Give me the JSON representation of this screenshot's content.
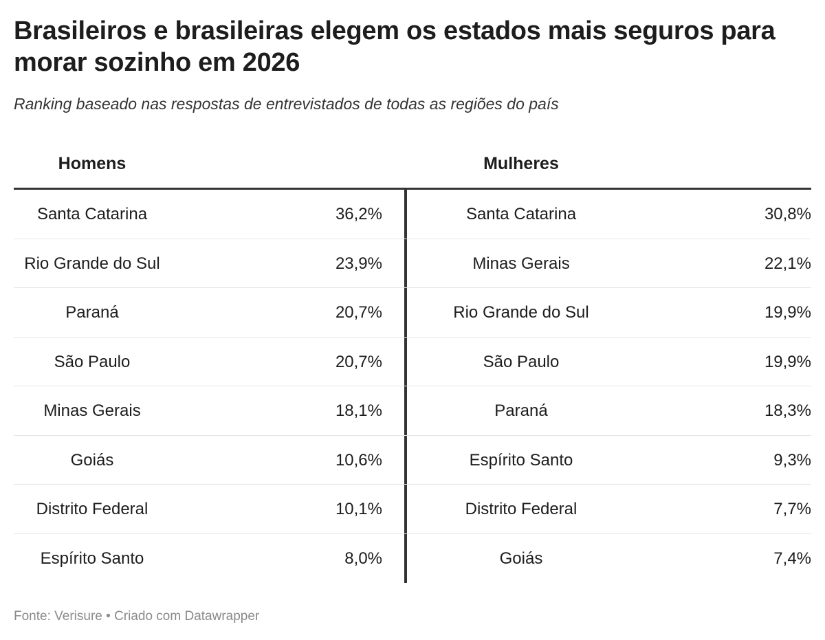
{
  "title": "Brasileiros e brasileiras elegem os estados mais seguros para morar sozinho em 2026",
  "subtitle": "Ranking baseado nas respostas de entrevistados de todas as regiões do país",
  "footer": {
    "source": "Fonte: Verisure",
    "separator": " • ",
    "credit": "Criado com Datawrapper"
  },
  "chart_data": {
    "type": "table",
    "title": "Brasileiros e brasileiras elegem os estados mais seguros para morar sozinho em 2026",
    "subtitle": "Ranking baseado nas respostas de entrevistados de todas as regiões do país",
    "columns": [
      "Homens",
      "Mulheres"
    ],
    "rows": [
      {
        "men_state": "Santa Catarina",
        "men_value": "36,2%",
        "women_state": "Santa Catarina",
        "women_value": "30,8%"
      },
      {
        "men_state": "Rio Grande do Sul",
        "men_value": "23,9%",
        "women_state": "Minas Gerais",
        "women_value": "22,1%"
      },
      {
        "men_state": "Paraná",
        "men_value": "20,7%",
        "women_state": "Rio Grande do Sul",
        "women_value": "19,9%"
      },
      {
        "men_state": "São Paulo",
        "men_value": "20,7%",
        "women_state": "São Paulo",
        "women_value": "19,9%"
      },
      {
        "men_state": "Minas Gerais",
        "men_value": "18,1%",
        "women_state": "Paraná",
        "women_value": "18,3%"
      },
      {
        "men_state": "Goiás",
        "men_value": "10,6%",
        "women_state": "Espírito Santo",
        "women_value": "9,3%"
      },
      {
        "men_state": "Distrito Federal",
        "men_value": "10,1%",
        "women_state": "Distrito Federal",
        "women_value": "7,7%"
      },
      {
        "men_state": "Espírito Santo",
        "men_value": "8,0%",
        "women_state": "Goiás",
        "women_value": "7,4%"
      }
    ]
  },
  "colors": {
    "text": "#1d1d1d",
    "rule": "#333333",
    "row_border": "#e6e6e6",
    "footer": "#8a8a8a"
  }
}
